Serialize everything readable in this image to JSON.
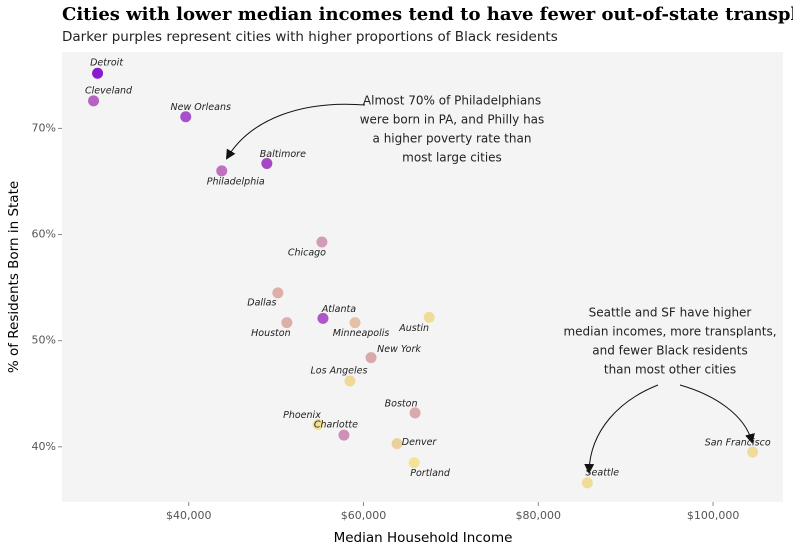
{
  "chart_data": {
    "type": "scatter",
    "title": "Cities with lower median incomes tend to have fewer out-of-state transplants",
    "subtitle": "Darker purples represent cities with higher proportions of Black residents",
    "x_label": "Median Household Income",
    "y_label": "% of Residents Born in State",
    "xlim": [
      25500,
      108000
    ],
    "ylim": [
      34.8,
      77.2
    ],
    "xticks": [
      {
        "value": 40000,
        "label": "$40,000"
      },
      {
        "value": 60000,
        "label": "$60,000"
      },
      {
        "value": 80000,
        "label": "$80,000"
      },
      {
        "value": 100000,
        "label": "$100,000"
      }
    ],
    "yticks": [
      {
        "value": 40,
        "label": "40%"
      },
      {
        "value": 50,
        "label": "50%"
      },
      {
        "value": 60,
        "label": "60%"
      },
      {
        "value": 70,
        "label": "70%"
      }
    ],
    "points": [
      {
        "name": "Detroit",
        "x": 29570,
        "y": 75.2,
        "color": "#8a1ad0"
      },
      {
        "name": "Cleveland",
        "x": 29110,
        "y": 72.6,
        "color": "#b664c4"
      },
      {
        "name": "New Orleans",
        "x": 39660,
        "y": 71.1,
        "color": "#a84fcc"
      },
      {
        "name": "Philadelphia",
        "x": 43780,
        "y": 66.0,
        "color": "#bf71c0"
      },
      {
        "name": "Baltimore",
        "x": 48940,
        "y": 66.7,
        "color": "#a548c8"
      },
      {
        "name": "Chicago",
        "x": 55240,
        "y": 59.3,
        "color": "#d09cb6"
      },
      {
        "name": "Dallas",
        "x": 50200,
        "y": 54.5,
        "color": "#dfaea8"
      },
      {
        "name": "Houston",
        "x": 51230,
        "y": 51.7,
        "color": "#dcb0a8"
      },
      {
        "name": "Atlanta",
        "x": 55360,
        "y": 52.1,
        "color": "#ae58c8"
      },
      {
        "name": "Minneapolis",
        "x": 59030,
        "y": 51.7,
        "color": "#e4c0a6"
      },
      {
        "name": "Austin",
        "x": 67510,
        "y": 52.2,
        "color": "#efdc98"
      },
      {
        "name": "New York",
        "x": 60860,
        "y": 48.4,
        "color": "#d8a8ac"
      },
      {
        "name": "Los Angeles",
        "x": 58450,
        "y": 46.2,
        "color": "#f0d998"
      },
      {
        "name": "Phoenix",
        "x": 54790,
        "y": 42.1,
        "color": "#f2e096"
      },
      {
        "name": "Charlotte",
        "x": 57760,
        "y": 41.1,
        "color": "#cf90b7"
      },
      {
        "name": "Boston",
        "x": 65900,
        "y": 43.2,
        "color": "#d9a9ae"
      },
      {
        "name": "Denver",
        "x": 63840,
        "y": 40.3,
        "color": "#ebd09c"
      },
      {
        "name": "Portland",
        "x": 65790,
        "y": 38.5,
        "color": "#f3e396"
      },
      {
        "name": "Seattle",
        "x": 85610,
        "y": 36.6,
        "color": "#f0dc98"
      },
      {
        "name": "San Francisco",
        "x": 104530,
        "y": 39.5,
        "color": "#f0db98"
      }
    ],
    "annotations": [
      {
        "lines": [
          "Almost 70% of Philadelphians",
          "were born in PA, and Philly has",
          "a higher poverty rate than",
          "most large cities"
        ]
      },
      {
        "lines": [
          "Seattle and SF have higher",
          "median incomes, more transplants,",
          "and fewer Black residents",
          "than most other cities"
        ]
      }
    ]
  }
}
